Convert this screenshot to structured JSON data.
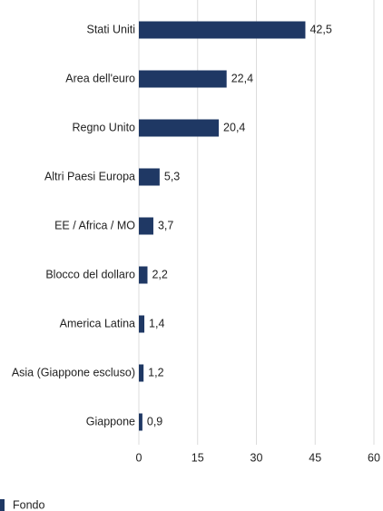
{
  "chart_data": {
    "type": "barh",
    "categories": [
      "Stati Uniti",
      "Area dell'euro",
      "Regno Unito",
      "Altri Paesi Europa",
      "EE / Africa / MO",
      "Blocco del dollaro",
      "America Latina",
      "Asia (Giappone escluso)",
      "Giappone"
    ],
    "series": [
      {
        "name": "Fondo",
        "color": "#1f3864",
        "values": [
          42.5,
          22.4,
          20.4,
          5.3,
          3.7,
          2.2,
          1.4,
          1.2,
          0.9
        ],
        "value_labels": [
          "42,5",
          "22,4",
          "20,4",
          "5,3",
          "3,7",
          "2,2",
          "1,4",
          "1,2",
          "0,9"
        ]
      }
    ],
    "xlim": [
      0,
      60
    ],
    "xticks": [
      0,
      15,
      30,
      45,
      60
    ],
    "grid": true
  }
}
